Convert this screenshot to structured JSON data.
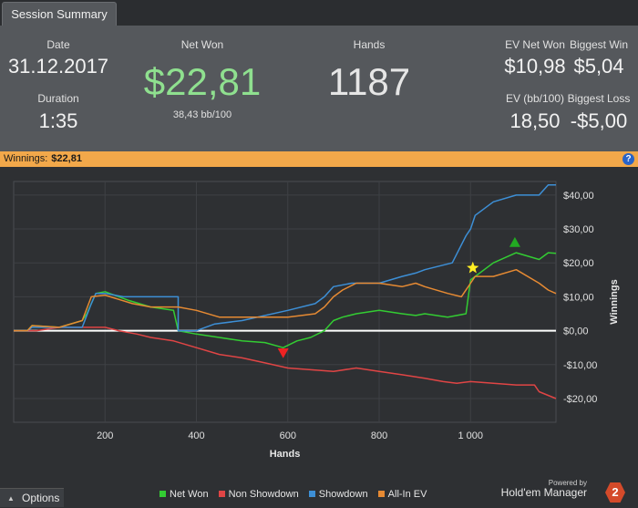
{
  "tab": {
    "label": "Session Summary"
  },
  "summary": {
    "date_label": "Date",
    "date_value": "31.12.2017",
    "duration_label": "Duration",
    "duration_value": "1:35",
    "net_won_label": "Net Won",
    "net_won_value": "$22,81",
    "net_won_bb": "38,43 bb/100",
    "hands_label": "Hands",
    "hands_value": "1187",
    "ev_net_won_label": "EV Net Won",
    "ev_net_won_value": "$10,98",
    "biggest_win_label": "Biggest Win",
    "biggest_win_value": "$5,04",
    "ev_bb_label": "EV (bb/100)",
    "ev_bb_value": "18,50",
    "biggest_loss_label": "Biggest Loss",
    "biggest_loss_value": "-$5,00"
  },
  "winnings_bar": {
    "label": "Winnings:",
    "value": "$22,81",
    "help_icon": "?"
  },
  "chart_data": {
    "type": "line",
    "xlabel": "Hands",
    "ylabel": "Winnings",
    "xlim": [
      0,
      1187
    ],
    "ylim": [
      -27,
      44
    ],
    "x_ticks": [
      200,
      400,
      600,
      800,
      1000
    ],
    "x_tick_labels": [
      "200",
      "400",
      "600",
      "800",
      "1 000"
    ],
    "y_ticks": [
      40,
      30,
      20,
      10,
      0,
      -10,
      -20
    ],
    "y_tick_labels": [
      "$40,00",
      "$30,00",
      "$20,00",
      "$10,00",
      "$0,00",
      "-$10,00",
      "-$20,00"
    ],
    "series": [
      {
        "name": "Net Won",
        "color": "#33cc33",
        "points": [
          [
            0,
            0
          ],
          [
            30,
            0
          ],
          [
            40,
            1.5
          ],
          [
            100,
            1
          ],
          [
            150,
            3
          ],
          [
            160,
            5
          ],
          [
            180,
            11
          ],
          [
            200,
            11.5
          ],
          [
            250,
            9
          ],
          [
            300,
            7
          ],
          [
            350,
            6
          ],
          [
            360,
            0
          ],
          [
            400,
            -1
          ],
          [
            450,
            -2
          ],
          [
            500,
            -3
          ],
          [
            550,
            -3.5
          ],
          [
            590,
            -5
          ],
          [
            620,
            -3
          ],
          [
            650,
            -2
          ],
          [
            680,
            0
          ],
          [
            700,
            3
          ],
          [
            720,
            4
          ],
          [
            750,
            5
          ],
          [
            800,
            6
          ],
          [
            850,
            5
          ],
          [
            880,
            4.5
          ],
          [
            900,
            5
          ],
          [
            950,
            4
          ],
          [
            970,
            4.5
          ],
          [
            990,
            5
          ],
          [
            1000,
            15
          ],
          [
            1010,
            16
          ],
          [
            1050,
            20
          ],
          [
            1100,
            23
          ],
          [
            1150,
            21
          ],
          [
            1170,
            23
          ],
          [
            1187,
            22.81
          ]
        ]
      },
      {
        "name": "Non Showdown",
        "color": "#e04545",
        "points": [
          [
            0,
            0
          ],
          [
            50,
            0
          ],
          [
            100,
            1
          ],
          [
            200,
            1
          ],
          [
            230,
            0
          ],
          [
            270,
            -1
          ],
          [
            300,
            -2
          ],
          [
            350,
            -3
          ],
          [
            400,
            -5
          ],
          [
            450,
            -7
          ],
          [
            500,
            -8
          ],
          [
            550,
            -9.5
          ],
          [
            600,
            -11
          ],
          [
            650,
            -11.5
          ],
          [
            700,
            -12
          ],
          [
            750,
            -11
          ],
          [
            800,
            -12
          ],
          [
            850,
            -13
          ],
          [
            900,
            -14
          ],
          [
            940,
            -15
          ],
          [
            970,
            -15.5
          ],
          [
            1000,
            -15
          ],
          [
            1050,
            -15.5
          ],
          [
            1100,
            -16
          ],
          [
            1140,
            -16
          ],
          [
            1150,
            -18
          ],
          [
            1187,
            -20
          ]
        ]
      },
      {
        "name": "Showdown",
        "color": "#3d8fd6",
        "points": [
          [
            0,
            0
          ],
          [
            30,
            0
          ],
          [
            40,
            1
          ],
          [
            150,
            1
          ],
          [
            170,
            8
          ],
          [
            180,
            11
          ],
          [
            200,
            11
          ],
          [
            240,
            10
          ],
          [
            360,
            10
          ],
          [
            360,
            0
          ],
          [
            400,
            0
          ],
          [
            440,
            2
          ],
          [
            500,
            3
          ],
          [
            600,
            6
          ],
          [
            660,
            8
          ],
          [
            680,
            10
          ],
          [
            700,
            13
          ],
          [
            740,
            14
          ],
          [
            800,
            14
          ],
          [
            850,
            16
          ],
          [
            880,
            17
          ],
          [
            900,
            18
          ],
          [
            960,
            20
          ],
          [
            990,
            28
          ],
          [
            1000,
            30
          ],
          [
            1010,
            34
          ],
          [
            1050,
            38
          ],
          [
            1100,
            40
          ],
          [
            1150,
            40
          ],
          [
            1170,
            43
          ],
          [
            1187,
            43
          ]
        ]
      },
      {
        "name": "All-In EV",
        "color": "#e68a33",
        "points": [
          [
            0,
            0
          ],
          [
            30,
            0
          ],
          [
            40,
            1.5
          ],
          [
            100,
            1
          ],
          [
            150,
            3
          ],
          [
            170,
            10
          ],
          [
            200,
            10.5
          ],
          [
            260,
            8
          ],
          [
            300,
            7
          ],
          [
            360,
            7
          ],
          [
            400,
            6
          ],
          [
            450,
            4
          ],
          [
            500,
            4
          ],
          [
            600,
            4
          ],
          [
            660,
            5
          ],
          [
            680,
            7
          ],
          [
            700,
            10
          ],
          [
            720,
            12
          ],
          [
            750,
            14
          ],
          [
            800,
            14
          ],
          [
            850,
            13
          ],
          [
            880,
            14
          ],
          [
            900,
            13
          ],
          [
            950,
            11
          ],
          [
            980,
            10
          ],
          [
            1000,
            14
          ],
          [
            1010,
            16
          ],
          [
            1050,
            16
          ],
          [
            1100,
            18
          ],
          [
            1150,
            14
          ],
          [
            1170,
            12
          ],
          [
            1187,
            10.98
          ]
        ]
      }
    ],
    "markers": [
      {
        "type": "triangle-down",
        "color": "#ee2222",
        "x": 590,
        "y": -6.5
      },
      {
        "type": "triangle-up",
        "color": "#22aa22",
        "x": 1097,
        "y": 26
      },
      {
        "type": "star",
        "color": "#ffee22",
        "x": 1005,
        "y": 18.5
      }
    ],
    "zero_line": true,
    "legend_position": "bottom"
  },
  "legend": [
    {
      "label": "Net Won",
      "color": "#33cc33"
    },
    {
      "label": "Non Showdown",
      "color": "#e04545"
    },
    {
      "label": "Showdown",
      "color": "#3d8fd6"
    },
    {
      "label": "All-In EV",
      "color": "#e68a33"
    }
  ],
  "footer": {
    "options_label": "Options",
    "powered_by": "Powered by",
    "brand": "Hold'em Manager",
    "brand_logo": "2"
  }
}
